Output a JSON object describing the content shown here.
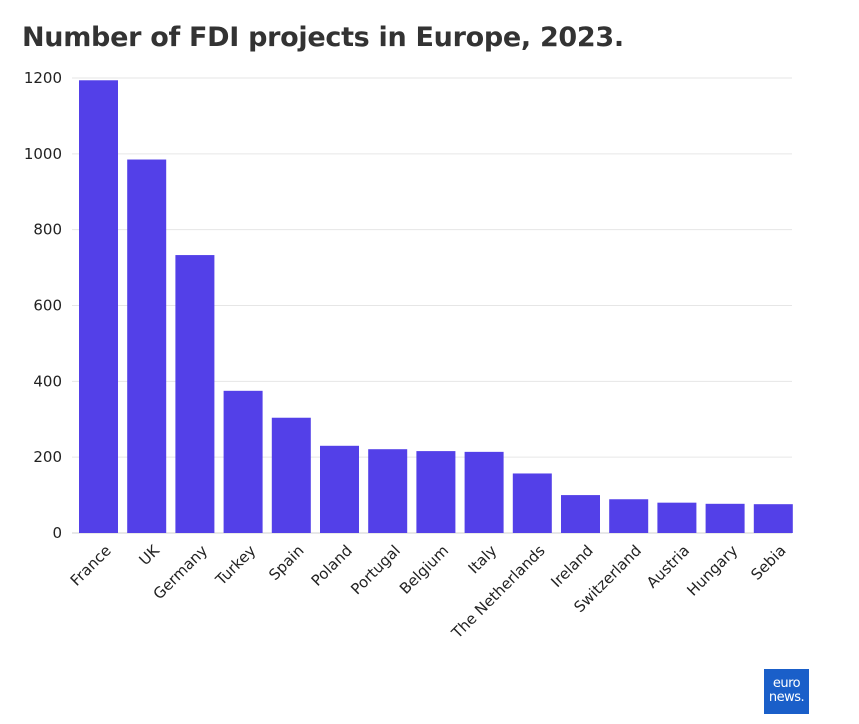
{
  "title": "Number of FDI projects in Europe, 2023.",
  "colors": {
    "bar": "#5340e8",
    "grid": "#e6e6e6",
    "text": "#222222",
    "logo_bg": "#1a5fc9"
  },
  "logo": {
    "line1": "euro",
    "line2": "news."
  },
  "chart_data": {
    "type": "bar",
    "title": "Number of FDI projects in Europe, 2023.",
    "xlabel": "",
    "ylabel": "",
    "ylim": [
      0,
      1200
    ],
    "yticks": [
      0,
      200,
      400,
      600,
      800,
      1000,
      1200
    ],
    "grid": true,
    "categories": [
      "France",
      "UK",
      "Germany",
      "Turkey",
      "Spain",
      "Poland",
      "Portugal",
      "Belgium",
      "Italy",
      "The Netherlands",
      "Ireland",
      "Switzerland",
      "Austria",
      "Hungary",
      "Sebia"
    ],
    "values": [
      1194,
      985,
      733,
      375,
      304,
      230,
      221,
      216,
      214,
      157,
      100,
      89,
      80,
      77,
      76
    ]
  }
}
